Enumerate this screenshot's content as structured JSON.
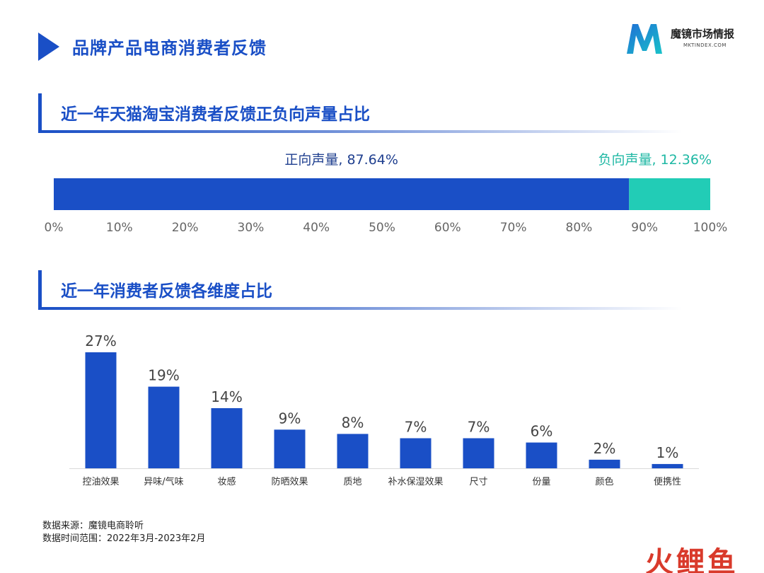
{
  "page": {
    "title": "品牌产品电商消费者反馈"
  },
  "logo": {
    "name": "魔镜市场情报",
    "url_text": "MKTINDEX.COM",
    "letter": "M"
  },
  "section1": {
    "title": "近一年天猫淘宝消费者反馈正负向声量占比"
  },
  "section2": {
    "title": "近一年消费者反馈各维度占比"
  },
  "colors": {
    "primary": "#1A4FC6",
    "positive": "#1A4FC6",
    "negative": "#22CCB6",
    "negative_label": "#1FB8A4",
    "watermark": "#D93A2B"
  },
  "chart_data": [
    {
      "type": "bar",
      "orientation": "horizontal-stacked",
      "series": [
        {
          "name": "正向声量",
          "value": 87.64,
          "label": "正向声量, 87.64%"
        },
        {
          "name": "负向声量",
          "value": 12.36,
          "label": "负向声量, 12.36%"
        }
      ],
      "xlim": [
        0,
        100
      ],
      "ticks": [
        "0%",
        "10%",
        "20%",
        "30%",
        "40%",
        "50%",
        "60%",
        "70%",
        "80%",
        "90%",
        "100%"
      ]
    },
    {
      "type": "bar",
      "categories": [
        "控油效果",
        "异味/气味",
        "妆感",
        "防晒效果",
        "质地",
        "补水保湿效果",
        "尺寸",
        "份量",
        "颜色",
        "便携性"
      ],
      "values": [
        27,
        19,
        14,
        9,
        8,
        7,
        7,
        6,
        2,
        1
      ],
      "value_labels": [
        "27%",
        "19%",
        "14%",
        "9%",
        "8%",
        "7%",
        "7%",
        "6%",
        "2%",
        "1%"
      ],
      "ylim": [
        0,
        27
      ]
    }
  ],
  "footer": {
    "source": "数据来源：魔镜电商聆听",
    "period": "数据时间范围：2022年3月-2023年2月"
  },
  "watermark": {
    "text": "火鲤鱼"
  }
}
